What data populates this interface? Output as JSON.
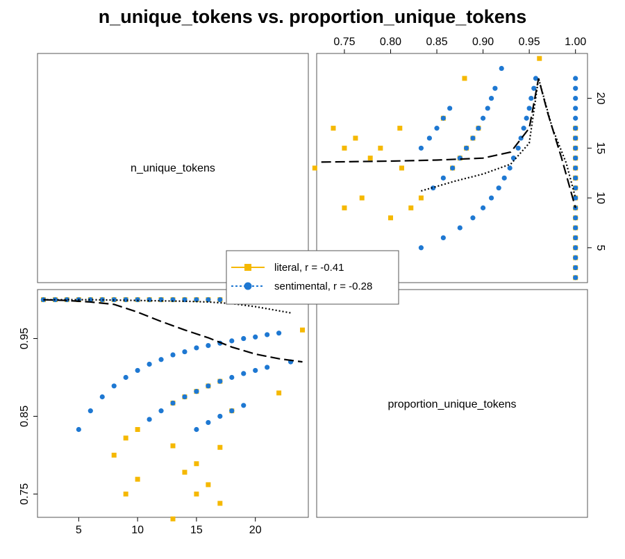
{
  "chart_data": {
    "type": "scatter",
    "title": "n_unique_tokens vs. proportion_unique_tokens",
    "variables": [
      "n_unique_tokens",
      "proportion_unique_tokens"
    ],
    "xlim_n": [
      1.5,
      24.5
    ],
    "xlim_p": [
      0.72,
      1.013
    ],
    "ticks_n": [
      "5",
      "10",
      "15",
      "20"
    ],
    "ticks_p_bottom_left": [
      "0.75",
      "0.85",
      "0.95"
    ],
    "ticks_p_top": [
      "0.75",
      "0.80",
      "0.85",
      "0.90",
      "0.95",
      "1.00"
    ],
    "ticks_n_right": [
      "5",
      "10",
      "15",
      "20"
    ],
    "legend": {
      "position": "center",
      "entries": [
        "literal, r = -0.41",
        "sentimental, r = -0.28"
      ]
    },
    "series": [
      {
        "name": "literal",
        "color": "#F5B800",
        "marker": "square",
        "line_style": "long-dash",
        "points": [
          [
            2,
            1.0
          ],
          [
            3,
            1.0
          ],
          [
            4,
            1.0
          ],
          [
            5,
            1.0
          ],
          [
            6,
            1.0
          ],
          [
            7,
            1.0
          ],
          [
            8,
            1.0
          ],
          [
            9,
            1.0
          ],
          [
            10,
            1.0
          ],
          [
            11,
            1.0
          ],
          [
            12,
            1.0
          ],
          [
            13,
            1.0
          ],
          [
            14,
            1.0
          ],
          [
            15,
            1.0
          ],
          [
            16,
            1.0
          ],
          [
            17,
            1.0
          ],
          [
            8,
            0.8
          ],
          [
            9,
            0.822
          ],
          [
            10,
            0.833
          ],
          [
            13,
            0.867
          ],
          [
            14,
            0.875
          ],
          [
            15,
            0.882
          ],
          [
            16,
            0.889
          ],
          [
            17,
            0.895
          ],
          [
            18,
            0.857
          ],
          [
            22,
            0.88
          ],
          [
            24,
            0.961
          ],
          [
            9,
            0.75
          ],
          [
            10,
            0.769
          ],
          [
            13,
            0.718
          ],
          [
            14,
            0.778
          ],
          [
            15,
            0.75
          ],
          [
            16,
            0.762
          ],
          [
            17,
            0.738
          ],
          [
            13,
            0.812
          ],
          [
            15,
            0.789
          ],
          [
            17,
            0.81
          ],
          [
            12,
            1.0
          ]
        ],
        "smooth": [
          [
            2,
            1.0
          ],
          [
            4,
            0.999
          ],
          [
            6,
            0.997
          ],
          [
            8,
            0.994
          ],
          [
            10,
            0.984
          ],
          [
            12,
            0.972
          ],
          [
            14,
            0.961
          ],
          [
            16,
            0.951
          ],
          [
            18,
            0.939
          ],
          [
            20,
            0.93
          ],
          [
            22,
            0.924
          ],
          [
            24,
            0.92
          ]
        ]
      },
      {
        "name": "sentimental",
        "color": "#1E78D2",
        "marker": "circle",
        "line_style": "dotted",
        "points": [
          [
            2,
            1.0
          ],
          [
            3,
            1.0
          ],
          [
            4,
            1.0
          ],
          [
            5,
            1.0
          ],
          [
            6,
            1.0
          ],
          [
            7,
            1.0
          ],
          [
            8,
            1.0
          ],
          [
            9,
            1.0
          ],
          [
            10,
            1.0
          ],
          [
            11,
            1.0
          ],
          [
            12,
            1.0
          ],
          [
            13,
            1.0
          ],
          [
            14,
            1.0
          ],
          [
            15,
            1.0
          ],
          [
            16,
            1.0
          ],
          [
            17,
            1.0
          ],
          [
            18,
            1.0
          ],
          [
            19,
            1.0
          ],
          [
            20,
            1.0
          ],
          [
            21,
            1.0
          ],
          [
            22,
            1.0
          ],
          [
            6,
            0.857
          ],
          [
            7,
            0.875
          ],
          [
            8,
            0.889
          ],
          [
            9,
            0.9
          ],
          [
            10,
            0.909
          ],
          [
            11,
            0.917
          ],
          [
            12,
            0.923
          ],
          [
            13,
            0.929
          ],
          [
            14,
            0.933
          ],
          [
            15,
            0.938
          ],
          [
            16,
            0.941
          ],
          [
            17,
            0.944
          ],
          [
            18,
            0.947
          ],
          [
            19,
            0.95
          ],
          [
            20,
            0.952
          ],
          [
            21,
            0.955
          ],
          [
            22,
            0.957
          ],
          [
            23,
            0.92
          ],
          [
            5,
            0.833
          ],
          [
            11,
            0.846
          ],
          [
            12,
            0.857
          ],
          [
            13,
            0.867
          ],
          [
            14,
            0.875
          ],
          [
            15,
            0.882
          ],
          [
            16,
            0.889
          ],
          [
            17,
            0.895
          ],
          [
            18,
            0.9
          ],
          [
            19,
            0.905
          ],
          [
            20,
            0.909
          ],
          [
            21,
            0.913
          ],
          [
            15,
            0.833
          ],
          [
            16,
            0.842
          ],
          [
            17,
            0.85
          ],
          [
            18,
            0.857
          ],
          [
            19,
            0.864
          ]
        ],
        "smooth": [
          [
            2,
            1.0
          ],
          [
            6,
            1.0
          ],
          [
            10,
            0.999
          ],
          [
            14,
            0.998
          ],
          [
            16,
            0.997
          ],
          [
            18,
            0.995
          ],
          [
            20,
            0.991
          ],
          [
            23,
            0.983
          ]
        ]
      }
    ]
  }
}
